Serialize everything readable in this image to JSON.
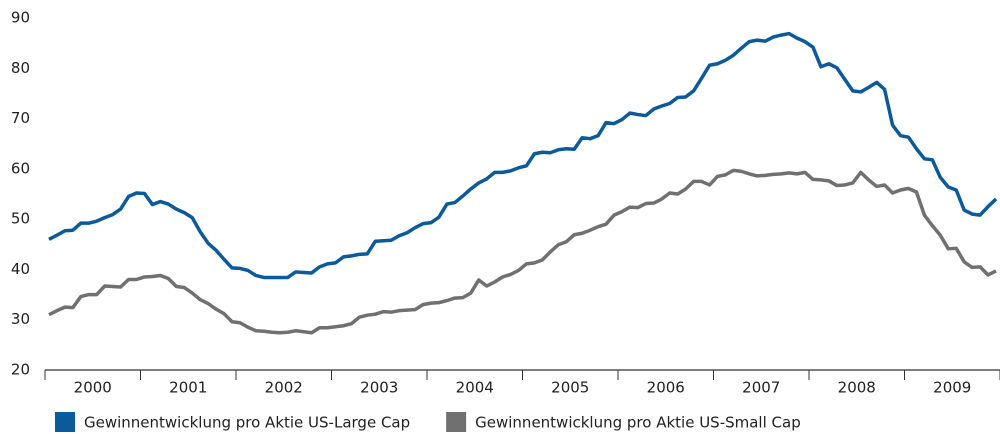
{
  "chart_data": {
    "type": "line",
    "categories": [
      null,
      null,
      null,
      null,
      null,
      null,
      "2000",
      null,
      null,
      null,
      null,
      null,
      null,
      null,
      null,
      null,
      null,
      null,
      "2001",
      null,
      null,
      null,
      null,
      null,
      null,
      null,
      null,
      null,
      null,
      null,
      "2002",
      null,
      null,
      null,
      null,
      null,
      null,
      null,
      null,
      null,
      null,
      null,
      "2003",
      null,
      null,
      null,
      null,
      null,
      null,
      null,
      null,
      null,
      null,
      null,
      "2004",
      null,
      null,
      null,
      null,
      null,
      null,
      null,
      null,
      null,
      null,
      null,
      "2005",
      null,
      null,
      null,
      null,
      null,
      null,
      null,
      null,
      null,
      null,
      null,
      "2006",
      null,
      null,
      null,
      null,
      null,
      null,
      null,
      null,
      null,
      null,
      null,
      "2007",
      null,
      null,
      null,
      null,
      null,
      null,
      null,
      null,
      null,
      null,
      null,
      "2008",
      null,
      null,
      null,
      null,
      null,
      null,
      null,
      null,
      null,
      null,
      null,
      "2009",
      null,
      null,
      null,
      null,
      null
    ],
    "series": [
      {
        "name": "Gewinnentwicklung pro Aktie US-Large Cap",
        "color": "#0a5a9c",
        "values": [
          46,
          46.8,
          47.7,
          47.8,
          49.2,
          49.2,
          49.6,
          50.3,
          50.9,
          52,
          54.5,
          55.2,
          55.1,
          52.9,
          53.5,
          53,
          52,
          51.3,
          50.3,
          47.5,
          45.2,
          43.8,
          42,
          40.3,
          40.2,
          39.8,
          38.8,
          38.4,
          38.4,
          38.4,
          38.4,
          39.5,
          39.4,
          39.3,
          40.5,
          41.1,
          41.3,
          42.5,
          42.7,
          43,
          43.1,
          45.6,
          45.7,
          45.8,
          46.7,
          47.3,
          48.3,
          49.1,
          49.3,
          50.4,
          53,
          53.3,
          54.6,
          56,
          57.2,
          58,
          59.3,
          59.3,
          59.6,
          60.2,
          60.6,
          63,
          63.3,
          63.2,
          63.8,
          64,
          63.9,
          66.2,
          66,
          66.6,
          69.2,
          69,
          69.8,
          71.1,
          70.8,
          70.6,
          71.9,
          72.5,
          73,
          74.2,
          74.3,
          75.5,
          78,
          80.6,
          80.9,
          81.6,
          82.6,
          84,
          85.3,
          85.6,
          85.4,
          86.2,
          86.6,
          86.9,
          86,
          85.3,
          84.2,
          80.3,
          80.9,
          80.1,
          77.8,
          75.5,
          75.3,
          76.2,
          77.2,
          75.8,
          68.7,
          66.6,
          66.3,
          64,
          62,
          61.8,
          58.3,
          56.4,
          55.8,
          51.8,
          51,
          50.8,
          52.5,
          54
        ]
      },
      {
        "name": "Gewinnentwicklung pro Aktie US-Small Cap",
        "color": "#707070",
        "values": [
          31,
          31.8,
          32.5,
          32.4,
          34.6,
          35,
          35,
          36.7,
          36.6,
          36.5,
          38,
          38,
          38.5,
          38.6,
          38.8,
          38.2,
          36.6,
          36.4,
          35.3,
          34,
          33.2,
          32.1,
          31.2,
          29.6,
          29.4,
          28.5,
          27.8,
          27.7,
          27.5,
          27.4,
          27.5,
          27.8,
          27.6,
          27.4,
          28.4,
          28.4,
          28.6,
          28.8,
          29.2,
          30.5,
          30.9,
          31.1,
          31.6,
          31.5,
          31.8,
          31.9,
          32,
          33,
          33.3,
          33.4,
          33.8,
          34.3,
          34.4,
          35.3,
          37.9,
          36.7,
          37.5,
          38.5,
          39,
          39.8,
          41.1,
          41.3,
          41.9,
          43.5,
          44.9,
          45.5,
          46.9,
          47.2,
          47.8,
          48.5,
          49,
          50.8,
          51.5,
          52.4,
          52.3,
          53.1,
          53.2,
          54,
          55.2,
          55,
          56,
          57.5,
          57.5,
          56.8,
          58.5,
          58.8,
          59.7,
          59.5,
          59,
          58.6,
          58.7,
          58.9,
          59,
          59.2,
          59,
          59.3,
          57.9,
          57.8,
          57.6,
          56.7,
          56.8,
          57.2,
          59.3,
          57.8,
          56.5,
          56.8,
          55.2,
          55.8,
          56.1,
          55.4,
          50.8,
          48.7,
          46.8,
          44.1,
          44.2,
          41.5,
          40.4,
          40.5,
          38.9,
          39.7
        ]
      }
    ],
    "ylim": [
      20,
      90
    ],
    "yticks": [
      20,
      30,
      40,
      50,
      60,
      70,
      80,
      90
    ],
    "grid": false,
    "legend": "bottom"
  }
}
